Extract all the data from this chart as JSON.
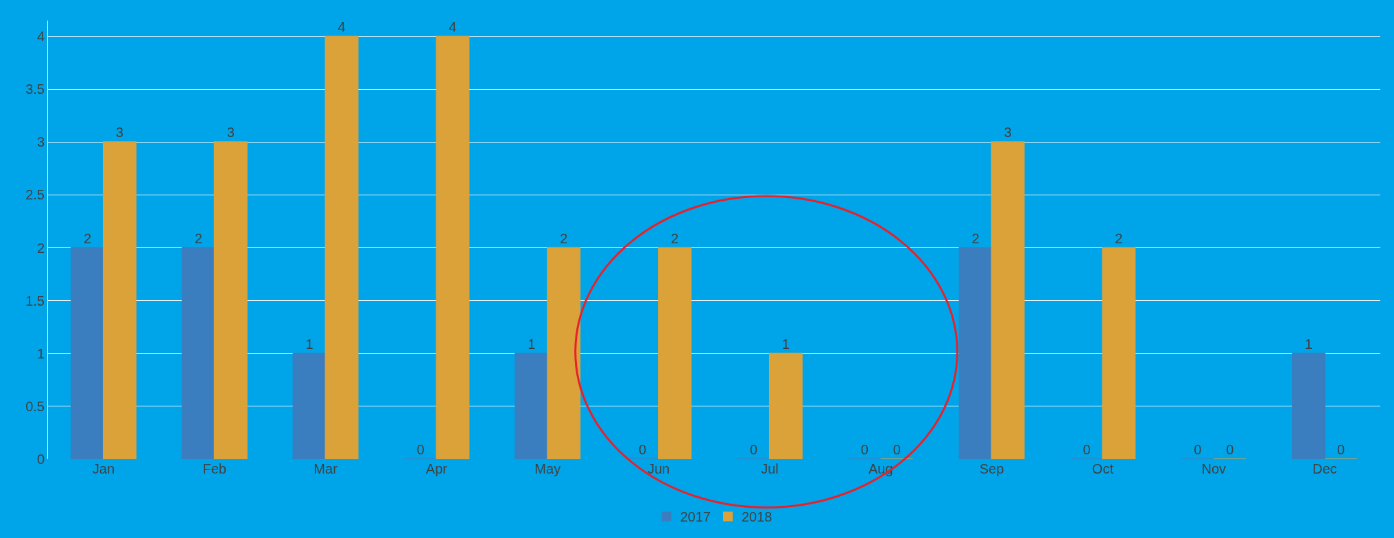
{
  "chart_data": {
    "type": "bar",
    "categories": [
      "Jan",
      "Feb",
      "Mar",
      "Apr",
      "May",
      "Jun",
      "Jul",
      "Aug",
      "Sep",
      "Oct",
      "Nov",
      "Dec"
    ],
    "series": [
      {
        "name": "2017",
        "color": "#3a7ebf",
        "values": [
          2,
          2,
          1,
          0,
          1,
          0,
          0,
          0,
          2,
          0,
          0,
          1
        ]
      },
      {
        "name": "2018",
        "color": "#dca23a",
        "values": [
          3,
          3,
          4,
          4,
          2,
          2,
          1,
          0,
          3,
          2,
          0,
          0
        ]
      }
    ],
    "ylim": [
      0,
      4.15
    ],
    "yticks": [
      0,
      0.5,
      1,
      1.5,
      2,
      2.5,
      3,
      3.5,
      4
    ],
    "grid": "y",
    "legend": "bottom",
    "data_labels": true
  }
}
